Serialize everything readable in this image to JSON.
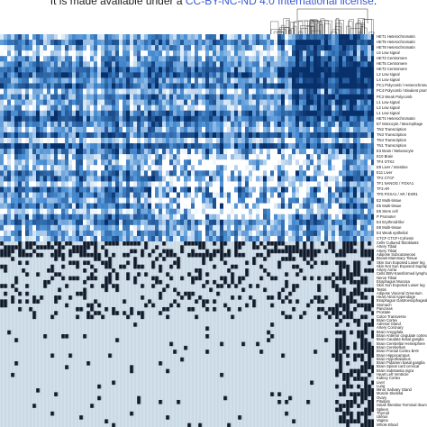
{
  "banner": {
    "prefix": "It is made available under a ",
    "license": "CC-BY-NC-ND 4.0 International license",
    "suffix": "."
  },
  "chart_data": [
    {
      "type": "heatmap",
      "panel": "chromatin-state-enrichment",
      "colors": {
        "high": "#08306b",
        "mid": "#4a8fd4",
        "low": "#ffffff"
      },
      "rows": [
        "HET1 Heterochromatin",
        "HET5 Heterochromatin",
        "HET8 Heterochromatin",
        "L5 Low signal",
        "HET3 Centromere",
        "HET5 Centromere",
        "HET2 Centromere",
        "L2 Low signal",
        "L4 Low signal",
        "PC1 Polycomb / Heterochromatin",
        "PC4 Polycomb / Bivalent promoter",
        "PC2 Weak Polycomb",
        "L1 Low signal",
        "L3 Low signal",
        "L1 Low signal",
        "HET4 Heterochromatin",
        "E7 Monocyte / Macrophage",
        "TN2 Transcription",
        "TN3 Transcription",
        "TN4 Transcription",
        "TN1 Transcription",
        "E3 Brain / Melanocyte",
        "E10 Brain",
        "TF4 OTX2",
        "E9 Liver / Intestine",
        "E11 Liver",
        "TF2 CTCF",
        "TF1 NANOG / FOXA1",
        "TF3 AR",
        "TF5 FOXA1 / AR / ESR1",
        "E2 Multi-tissue",
        "E5 Multi-tissue",
        "E6 Stem cell",
        "P Promoter",
        "E4 Erythroid-like",
        "E8 Multi-tissue",
        "E4 Weak epithelial",
        "CTCF CTCF+Cohesin"
      ]
    },
    {
      "type": "heatmap",
      "panel": "tissue-annotation",
      "colors": {
        "present": "#0f1a2b",
        "absent": "#c9d9e6"
      },
      "rows": [
        "Cells Cultured fibroblasts",
        "Artery Tibial",
        "Artery Tibial",
        "Adipose Subcutaneous",
        "Breast Mammary Tissue",
        "Skin Sun Exposed Lower leg",
        "Skin Not Sun Exposed Suprapubic",
        "Artery Aorta",
        "Cells EBV-transformed lymphocytes",
        "Nerve Tibial",
        "Esophagus Mucosa",
        "Skin Sun Exposed Lower leg",
        "Testis",
        "Adipose Visceral Omentum",
        "Heart Atrial Appendage",
        "Esophagus Gastroesophageal Junction",
        "Stomach",
        "Pancreas",
        "Prostate",
        "Colon Transverse",
        "Brain Cortex",
        "Adrenal Gland",
        "Artery Coronary",
        "Brain Amygdala",
        "Brain Anterior cingulate cortex",
        "Brain Caudate basal ganglia",
        "Brain Cerebellar Hemisphere",
        "Brain Cerebellum",
        "Brain Frontal Cortex BA9",
        "Brain Hippocampus",
        "Brain Hypothalamus",
        "Brain Putamen basal ganglia",
        "Brain Spinal cord cervical",
        "Brain Substantia nigra",
        "Heart Left Ventricle",
        "Kidney Cortex",
        "Liver",
        "Lung",
        "Minor Salivary Gland",
        "Muscle Skeletal",
        "Ovary",
        "Pituitary",
        "Small Intestine Terminal Ileum",
        "Spleen",
        "Thyroid",
        "Uterus",
        "Vagina",
        "Whole Blood"
      ]
    }
  ]
}
